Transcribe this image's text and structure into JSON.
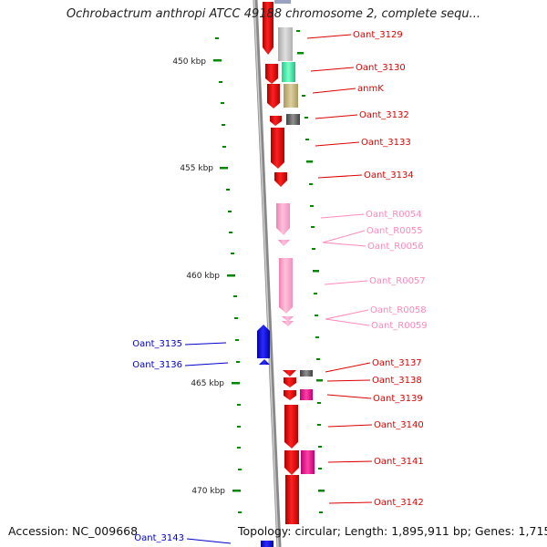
{
  "title": "Ochrobactrum anthropi ATCC 49188 chromosome 2, complete sequ...",
  "accession": "Accession: NC_009668",
  "topology": "Topology: circular; Length: 1,895,911 bp; Genes: 1,715",
  "scale_labels": [
    "450 kbp",
    "455 kbp",
    "460 kbp",
    "465 kbp",
    "470 kbp"
  ],
  "colors": {
    "gene_red": "#ee0000",
    "pseudo_pink": "#ff99cc",
    "left_blue": "#0000cc",
    "label_pink": "#ff88bb",
    "tick_green": "#008800",
    "backbone": "#888888"
  },
  "genes": [
    {
      "label": "Oant_3129",
      "color": "#dd0000"
    },
    {
      "label": "Oant_3130",
      "color": "#dd0000"
    },
    {
      "label": "anmK",
      "color": "#dd0000"
    },
    {
      "label": "Oant_3132",
      "color": "#dd0000"
    },
    {
      "label": "Oant_3133",
      "color": "#dd0000"
    },
    {
      "label": "Oant_3134",
      "color": "#dd0000"
    },
    {
      "label": "Oant_R0054",
      "color": "#ff88bb"
    },
    {
      "label": "Oant_R0055",
      "color": "#ff88bb"
    },
    {
      "label": "Oant_R0056",
      "color": "#ff88bb"
    },
    {
      "label": "Oant_R0057",
      "color": "#ff88bb"
    },
    {
      "label": "Oant_R0058",
      "color": "#ff88bb"
    },
    {
      "label": "Oant_R0059",
      "color": "#ff88bb"
    },
    {
      "label": "Oant_3137",
      "color": "#dd0000"
    },
    {
      "label": "Oant_3138",
      "color": "#dd0000"
    },
    {
      "label": "Oant_3139",
      "color": "#dd0000"
    },
    {
      "label": "Oant_3140",
      "color": "#dd0000"
    },
    {
      "label": "Oant_3141",
      "color": "#dd0000"
    },
    {
      "label": "Oant_3142",
      "color": "#dd0000"
    },
    {
      "label": "Oant_3135",
      "color": "#0000cc"
    },
    {
      "label": "Oant_3136",
      "color": "#0000cc"
    },
    {
      "label": "Oant_3143",
      "color": "#0000cc"
    }
  ]
}
